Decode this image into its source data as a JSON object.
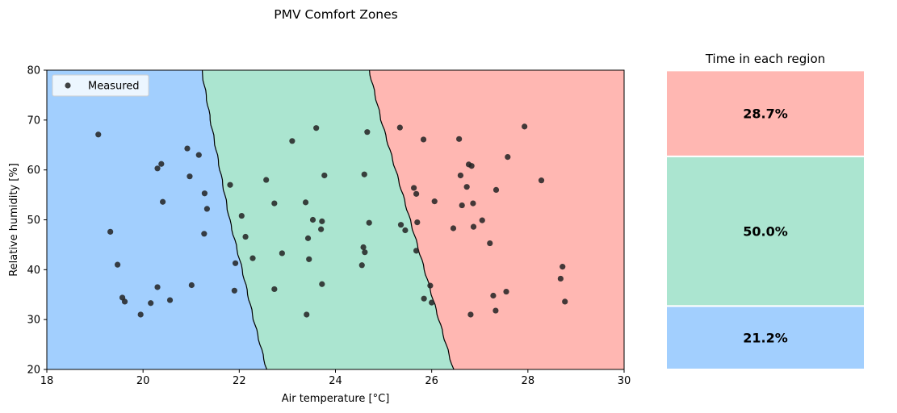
{
  "figure": {
    "suptitle": "PMV Comfort Zones"
  },
  "chart_data": [
    {
      "type": "scatter",
      "title": "",
      "xlabel": "Air temperature [°C]",
      "ylabel": "Relative humidity [%]",
      "xlim": [
        18,
        30
      ],
      "ylim": [
        20,
        80
      ],
      "xticks": [
        18,
        20,
        22,
        24,
        26,
        28,
        30
      ],
      "yticks": [
        20,
        30,
        40,
        50,
        60,
        70,
        80
      ],
      "grid": false,
      "legend": {
        "position": "top-left",
        "entries": [
          "Measured"
        ]
      },
      "regions": [
        {
          "color": "#a2cffe",
          "boundary_right": [
            [
              22.57,
              20
            ],
            [
              22.3,
              30
            ],
            [
              22.06,
              40
            ],
            [
              21.8,
              50
            ],
            [
              21.6,
              60
            ],
            [
              21.4,
              70
            ],
            [
              21.22,
              80
            ]
          ]
        },
        {
          "color": "#abe5d0",
          "boundary_right": [
            [
              26.45,
              20
            ],
            [
              26.15,
              30
            ],
            [
              25.85,
              40
            ],
            [
              25.55,
              50
            ],
            [
              25.25,
              60
            ],
            [
              24.95,
              70
            ],
            [
              24.7,
              80
            ]
          ]
        },
        {
          "color": "#ffb7b2"
        }
      ],
      "series": [
        {
          "name": "Measured",
          "color": "#222222",
          "points": [
            [
              19.07,
              67.1
            ],
            [
              19.32,
              47.6
            ],
            [
              19.47,
              41.0
            ],
            [
              19.57,
              34.4
            ],
            [
              19.62,
              33.6
            ],
            [
              19.95,
              31.0
            ],
            [
              20.16,
              33.3
            ],
            [
              20.3,
              36.5
            ],
            [
              20.3,
              60.3
            ],
            [
              20.38,
              61.2
            ],
            [
              20.41,
              53.6
            ],
            [
              20.56,
              33.9
            ],
            [
              20.92,
              64.3
            ],
            [
              20.97,
              58.7
            ],
            [
              21.01,
              36.9
            ],
            [
              21.16,
              63.0
            ],
            [
              21.28,
              55.3
            ],
            [
              21.33,
              52.2
            ],
            [
              21.27,
              47.2
            ],
            [
              21.81,
              57.0
            ],
            [
              21.92,
              41.3
            ],
            [
              21.9,
              35.8
            ],
            [
              22.05,
              50.8
            ],
            [
              22.13,
              46.6
            ],
            [
              22.28,
              42.3
            ],
            [
              22.56,
              58.0
            ],
            [
              22.73,
              53.3
            ],
            [
              22.73,
              36.1
            ],
            [
              22.89,
              43.3
            ],
            [
              23.1,
              65.8
            ],
            [
              23.38,
              53.5
            ],
            [
              23.4,
              31.0
            ],
            [
              23.45,
              42.1
            ],
            [
              23.43,
              46.3
            ],
            [
              23.53,
              50.0
            ],
            [
              23.6,
              68.4
            ],
            [
              23.7,
              48.1
            ],
            [
              23.72,
              49.7
            ],
            [
              23.72,
              37.1
            ],
            [
              23.77,
              58.9
            ],
            [
              24.55,
              40.9
            ],
            [
              24.58,
              44.5
            ],
            [
              24.61,
              43.5
            ],
            [
              24.6,
              59.1
            ],
            [
              24.66,
              67.6
            ],
            [
              24.7,
              49.4
            ],
            [
              25.34,
              68.5
            ],
            [
              25.36,
              49.0
            ],
            [
              25.45,
              47.9
            ],
            [
              25.63,
              56.4
            ],
            [
              25.68,
              55.2
            ],
            [
              25.68,
              43.8
            ],
            [
              25.7,
              49.5
            ],
            [
              25.83,
              66.1
            ],
            [
              25.84,
              34.2
            ],
            [
              25.97,
              36.8
            ],
            [
              26.0,
              33.4
            ],
            [
              26.06,
              53.7
            ],
            [
              26.45,
              48.3
            ],
            [
              26.57,
              66.2
            ],
            [
              26.6,
              58.9
            ],
            [
              26.63,
              52.9
            ],
            [
              26.73,
              56.6
            ],
            [
              26.77,
              61.1
            ],
            [
              26.83,
              60.8
            ],
            [
              26.81,
              31.0
            ],
            [
              26.86,
              53.3
            ],
            [
              26.87,
              48.6
            ],
            [
              27.05,
              49.9
            ],
            [
              27.21,
              45.3
            ],
            [
              27.28,
              34.8
            ],
            [
              27.33,
              31.8
            ],
            [
              27.34,
              56.0
            ],
            [
              27.55,
              35.6
            ],
            [
              27.58,
              62.6
            ],
            [
              27.93,
              68.7
            ],
            [
              28.28,
              57.9
            ],
            [
              28.68,
              38.2
            ],
            [
              28.72,
              40.6
            ],
            [
              28.77,
              33.6
            ]
          ]
        }
      ]
    },
    {
      "type": "bar",
      "stacked": true,
      "title": "Time in each region",
      "categories": [
        "",
        "",
        ""
      ],
      "values": [
        21.2,
        50.0,
        28.7
      ],
      "labels": [
        "21.2%",
        "50.0%",
        "28.7%"
      ],
      "colors": [
        "#a2cffe",
        "#abe5d0",
        "#ffb7b2"
      ],
      "ylim": [
        0,
        100
      ],
      "axes_visible": false
    }
  ]
}
